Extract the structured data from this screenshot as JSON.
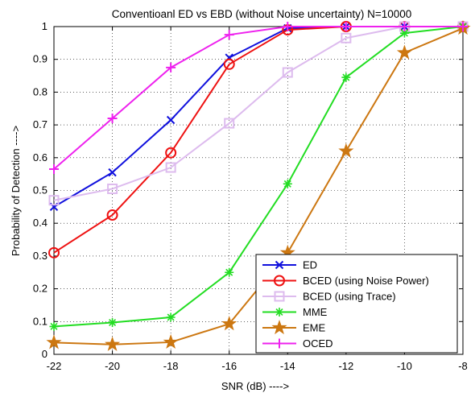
{
  "chart_data": {
    "type": "line",
    "title": "Conventioanl ED vs EBD (without Noise uncertainty) N=10000",
    "xlabel": "SNR (dB)  ---->",
    "ylabel": "Probability of Detection  ---->",
    "xlim": [
      -22,
      -8
    ],
    "ylim": [
      0,
      1
    ],
    "x": [
      -22,
      -20,
      -18,
      -16,
      -14,
      -12,
      -10,
      -8
    ],
    "xticks": [
      "-22",
      "-20",
      "-18",
      "-16",
      "-14",
      "-12",
      "-10",
      "-8"
    ],
    "yticks": [
      "0",
      "0.1",
      "0.2",
      "0.3",
      "0.4",
      "0.5",
      "0.6",
      "0.7",
      "0.8",
      "0.9",
      "1"
    ],
    "grid": true,
    "legend_position": "bottom-right",
    "series": [
      {
        "name": "ED",
        "color": "#1010dd",
        "marker": "x",
        "values": [
          0.45,
          0.555,
          0.715,
          0.905,
          0.995,
          1.0,
          1.0,
          1.0
        ]
      },
      {
        "name": "BCED (using Noise Power)",
        "color": "#ee1111",
        "marker": "circle",
        "values": [
          0.31,
          0.425,
          0.615,
          0.885,
          0.99,
          1.0,
          1.0,
          1.0
        ]
      },
      {
        "name": "BCED (using Trace)",
        "color": "#ddbbee",
        "marker": "square",
        "values": [
          0.47,
          0.505,
          0.57,
          0.705,
          0.86,
          0.965,
          1.0,
          1.0
        ]
      },
      {
        "name": "MME",
        "color": "#22dd22",
        "marker": "asterisk",
        "values": [
          0.085,
          0.097,
          0.113,
          0.25,
          0.52,
          0.845,
          0.98,
          1.0
        ]
      },
      {
        "name": "EME",
        "color": "#cc7711",
        "marker": "star",
        "values": [
          0.036,
          0.03,
          0.037,
          0.093,
          0.31,
          0.62,
          0.92,
          0.995
        ]
      },
      {
        "name": "OCED",
        "color": "#ee22ee",
        "marker": "plus",
        "values": [
          0.565,
          0.72,
          0.875,
          0.975,
          1.0,
          1.0,
          1.0,
          1.0
        ]
      }
    ]
  }
}
